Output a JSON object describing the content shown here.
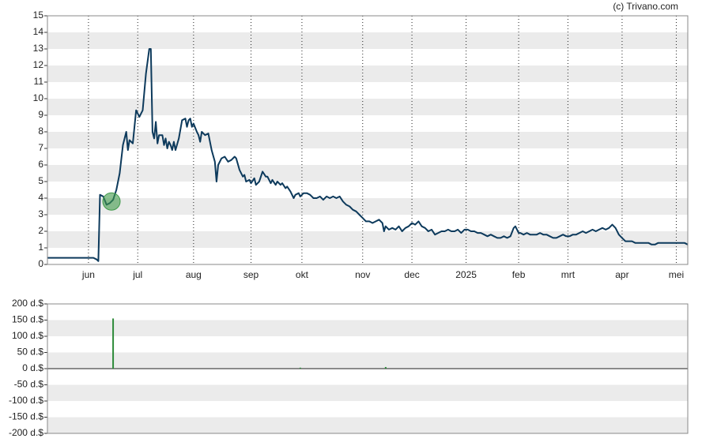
{
  "source": "(c) Trivano.com",
  "chart_data": [
    {
      "type": "line",
      "color": "#0d3a5c",
      "xlim": [
        0,
        390
      ],
      "ylim": [
        0,
        15
      ],
      "yticks": [
        0,
        1,
        2,
        3,
        4,
        5,
        6,
        7,
        8,
        9,
        10,
        11,
        12,
        13,
        14,
        15
      ],
      "xticks": [
        {
          "value": 25,
          "label": "jun"
        },
        {
          "value": 55,
          "label": "jul"
        },
        {
          "value": 89,
          "label": "aug"
        },
        {
          "value": 124,
          "label": "sep"
        },
        {
          "value": 155,
          "label": "okt"
        },
        {
          "value": 192,
          "label": "nov"
        },
        {
          "value": 222,
          "label": "dec"
        },
        {
          "value": 255,
          "label": "2025"
        },
        {
          "value": 287,
          "label": "feb"
        },
        {
          "value": 317,
          "label": "mrt"
        },
        {
          "value": 350,
          "label": "apr"
        },
        {
          "value": 383,
          "label": "mei"
        }
      ],
      "x": [
        0,
        4,
        8,
        12,
        16,
        20,
        24,
        28,
        30,
        31,
        32,
        34,
        36,
        38,
        40,
        42,
        44,
        46,
        48,
        49,
        50,
        52,
        54,
        56,
        58,
        60,
        62,
        63,
        64,
        65,
        66,
        67,
        68,
        70,
        71,
        72,
        73,
        74,
        75,
        76,
        77,
        78,
        80,
        82,
        84,
        85,
        86,
        87,
        88,
        89,
        91,
        92,
        93,
        94,
        96,
        98,
        100,
        102,
        103,
        104,
        106,
        108,
        110,
        112,
        114,
        115,
        117,
        119,
        120,
        121,
        123,
        124,
        126,
        127,
        129,
        131,
        133,
        134,
        136,
        137,
        139,
        140,
        142,
        143,
        145,
        146,
        148,
        150,
        151,
        153,
        154,
        156,
        158,
        160,
        162,
        164,
        166,
        168,
        170,
        172,
        174,
        176,
        178,
        180,
        182,
        184,
        186,
        188,
        190,
        192,
        194,
        196,
        198,
        200,
        202,
        204,
        205,
        206,
        208,
        210,
        212,
        214,
        216,
        218,
        220,
        222,
        224,
        226,
        228,
        230,
        232,
        234,
        236,
        238,
        240,
        242,
        244,
        246,
        248,
        250,
        252,
        254,
        256,
        258,
        260,
        262,
        264,
        266,
        268,
        270,
        272,
        274,
        276,
        278,
        280,
        282,
        284,
        285,
        287,
        288,
        290,
        292,
        294,
        296,
        298,
        300,
        302,
        304,
        306,
        308,
        310,
        312,
        314,
        316,
        318,
        320,
        322,
        324,
        326,
        328,
        330,
        332,
        334,
        336,
        338,
        340,
        342,
        344,
        346,
        348,
        350,
        352,
        354,
        356,
        358,
        360,
        362,
        364,
        366,
        368,
        370,
        372,
        374,
        376,
        378,
        380,
        382,
        384,
        386,
        388,
        390
      ],
      "values": [
        0.4,
        0.4,
        0.4,
        0.4,
        0.4,
        0.4,
        0.4,
        0.4,
        0.3,
        0.2,
        4.2,
        4.1,
        3.6,
        3.7,
        3.9,
        4.5,
        5.5,
        7.2,
        8.0,
        6.9,
        7.5,
        7.3,
        9.3,
        8.9,
        9.3,
        11.5,
        13.0,
        13.0,
        8.0,
        7.6,
        8.6,
        7.3,
        7.8,
        7.8,
        7.2,
        7.6,
        7.0,
        7.4,
        7.2,
        6.9,
        7.4,
        6.9,
        7.6,
        8.7,
        8.8,
        8.3,
        8.7,
        8.8,
        8.3,
        8.5,
        8.0,
        7.8,
        7.4,
        8.0,
        7.8,
        7.9,
        6.9,
        6.2,
        5.0,
        6.0,
        6.4,
        6.5,
        6.2,
        6.3,
        6.5,
        6.4,
        5.7,
        5.3,
        5.4,
        5.0,
        5.1,
        4.9,
        5.2,
        4.8,
        5.0,
        5.6,
        5.3,
        5.3,
        4.9,
        5.1,
        4.8,
        5.0,
        4.8,
        4.9,
        4.6,
        4.7,
        4.4,
        4.0,
        4.2,
        4.3,
        4.1,
        4.3,
        4.3,
        4.2,
        4.0,
        4.0,
        4.1,
        3.9,
        4.1,
        4.0,
        4.1,
        4.0,
        4.1,
        3.8,
        3.6,
        3.5,
        3.3,
        3.2,
        3.0,
        2.8,
        2.6,
        2.6,
        2.5,
        2.6,
        2.7,
        2.5,
        2.0,
        2.3,
        2.1,
        2.2,
        2.1,
        2.3,
        2.0,
        2.2,
        2.3,
        2.5,
        2.4,
        2.6,
        2.3,
        2.2,
        2.0,
        2.1,
        1.8,
        1.9,
        2.0,
        2.0,
        2.1,
        2.0,
        2.0,
        2.1,
        1.9,
        2.1,
        2.1,
        2.0,
        2.0,
        1.9,
        1.9,
        1.8,
        1.7,
        1.8,
        1.7,
        1.6,
        1.6,
        1.7,
        1.6,
        1.7,
        2.2,
        2.3,
        1.9,
        1.9,
        1.8,
        1.9,
        1.8,
        1.8,
        1.8,
        1.9,
        1.8,
        1.8,
        1.7,
        1.6,
        1.6,
        1.7,
        1.8,
        1.7,
        1.7,
        1.8,
        1.8,
        1.9,
        2.0,
        1.9,
        2.0,
        2.1,
        2.0,
        2.1,
        2.2,
        2.1,
        2.2,
        2.4,
        2.2,
        1.8,
        1.6,
        1.4,
        1.4,
        1.4,
        1.3,
        1.3,
        1.3,
        1.3,
        1.3,
        1.2,
        1.2,
        1.3,
        1.3,
        1.3,
        1.3,
        1.3,
        1.3,
        1.3,
        1.3,
        1.3,
        1.2
      ],
      "highlight": {
        "x": 39,
        "value": 3.8,
        "color": "#3f9a4a"
      }
    },
    {
      "type": "bar",
      "color": "#2e8b3a",
      "xlim": [
        0,
        390
      ],
      "ylim": [
        -200,
        200
      ],
      "yticks": [
        {
          "value": 200,
          "label": "200 d.$"
        },
        {
          "value": 150,
          "label": "150 d.$"
        },
        {
          "value": 100,
          "label": "100 d.$"
        },
        {
          "value": 50,
          "label": "50 d.$"
        },
        {
          "value": 0,
          "label": "0 d.$"
        },
        {
          "value": -50,
          "label": "-50 d.$"
        },
        {
          "value": -100,
          "label": "-100 d.$"
        },
        {
          "value": -150,
          "label": "-150 d.$"
        },
        {
          "value": -200,
          "label": "-200 d.$"
        }
      ],
      "x": [
        40,
        154,
        206
      ],
      "values": [
        155,
        3,
        5
      ]
    }
  ]
}
